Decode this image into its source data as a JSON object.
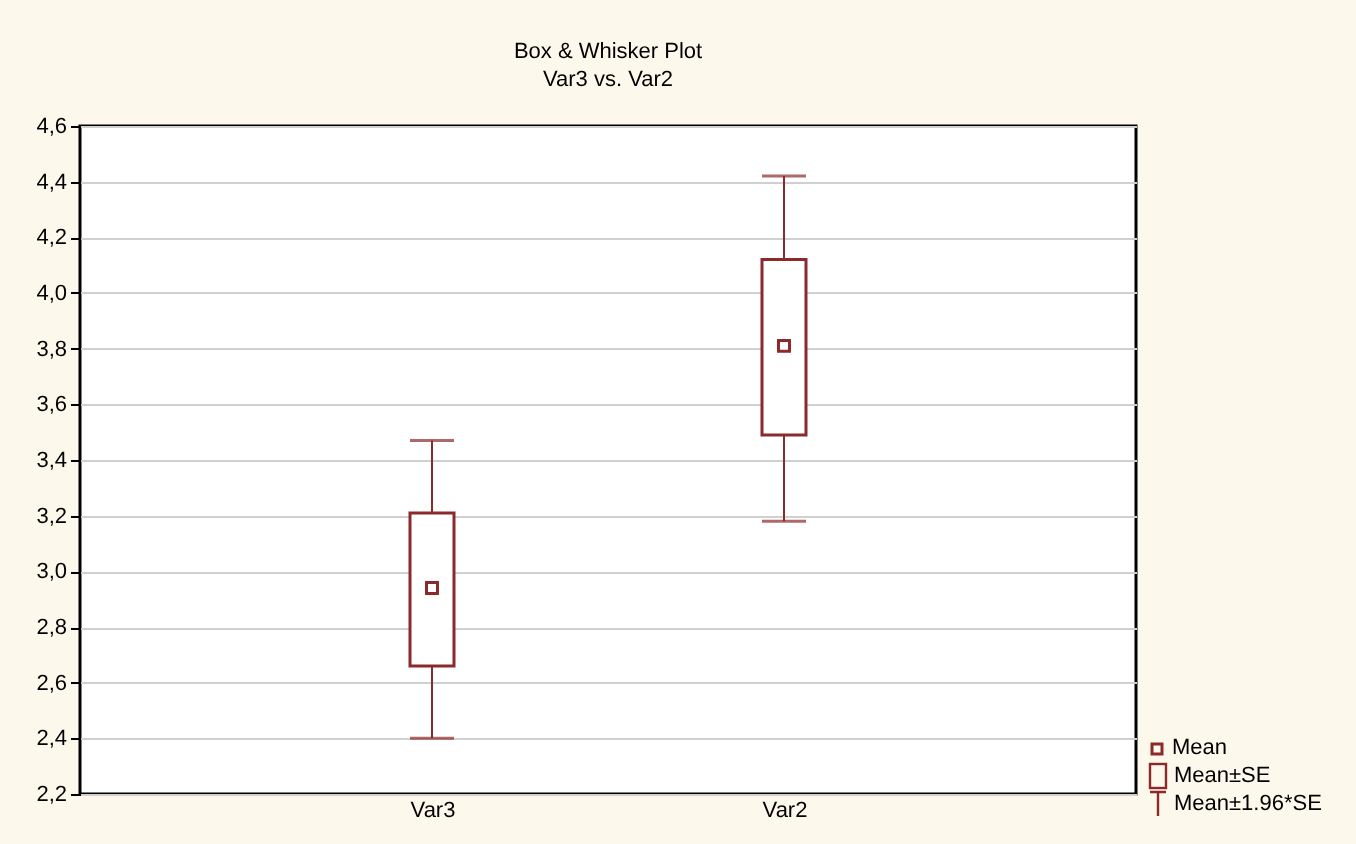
{
  "chart_data": {
    "type": "box",
    "title": "Box & Whisker Plot",
    "subtitle": "Var3    vs. Var2",
    "categories": [
      "Var3",
      "Var2"
    ],
    "boxes": [
      {
        "low": 2.4,
        "q1": 2.66,
        "q3": 3.21,
        "high": 3.47,
        "mean": 2.94
      },
      {
        "low": 3.18,
        "q1": 3.49,
        "q3": 4.12,
        "high": 4.42,
        "mean": 3.81
      }
    ],
    "color": "#8b2a2a",
    "ylim": [
      2.2,
      4.6
    ],
    "yticks": [
      {
        "value": 2.2,
        "label": "2,2"
      },
      {
        "value": 2.4,
        "label": "2,4"
      },
      {
        "value": 2.6,
        "label": "2,6"
      },
      {
        "value": 2.8,
        "label": "2,8"
      },
      {
        "value": 3.0,
        "label": "3,0"
      },
      {
        "value": 3.2,
        "label": "3,2"
      },
      {
        "value": 3.4,
        "label": "3,4"
      },
      {
        "value": 3.6,
        "label": "3,6"
      },
      {
        "value": 3.8,
        "label": "3,8"
      },
      {
        "value": 4.0,
        "label": "4,0"
      },
      {
        "value": 4.2,
        "label": "4,2"
      },
      {
        "value": 4.4,
        "label": "4,4"
      },
      {
        "value": 4.6,
        "label": "4,6"
      }
    ],
    "grid": "y",
    "annotations": [
      "Mean",
      "Mean±SE",
      "Mean±1.96*SE"
    ]
  }
}
